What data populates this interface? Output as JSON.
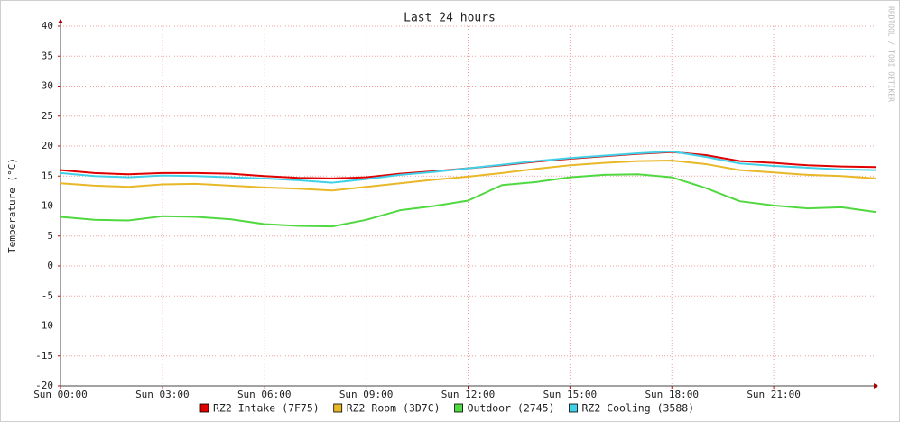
{
  "chart_data": {
    "type": "line",
    "title": "Last 24 hours",
    "y_label": "Temperature (°C)",
    "watermark": "RRDTOOL / TOBI OETIKER",
    "x": [
      0,
      1,
      2,
      3,
      4,
      5,
      6,
      7,
      8,
      9,
      10,
      11,
      12,
      13,
      14,
      15,
      16,
      17,
      18,
      19,
      20,
      21,
      22,
      23,
      24
    ],
    "xlim": [
      0,
      24
    ],
    "xticks": [
      {
        "value": 0,
        "label": "Sun 00:00"
      },
      {
        "value": 3,
        "label": "Sun 03:00"
      },
      {
        "value": 6,
        "label": "Sun 06:00"
      },
      {
        "value": 9,
        "label": "Sun 09:00"
      },
      {
        "value": 12,
        "label": "Sun 12:00"
      },
      {
        "value": 15,
        "label": "Sun 15:00"
      },
      {
        "value": 18,
        "label": "Sun 18:00"
      },
      {
        "value": 21,
        "label": "Sun 21:00"
      }
    ],
    "ylim": [
      -20,
      40
    ],
    "yticks": [
      -20,
      -15,
      -10,
      -5,
      0,
      5,
      10,
      15,
      20,
      25,
      30,
      35,
      40
    ],
    "grid": true,
    "series": [
      {
        "name": "RZ2 Intake (7F75)",
        "color": "#e00000",
        "values": [
          16.0,
          15.5,
          15.3,
          15.5,
          15.5,
          15.4,
          15.0,
          14.7,
          14.6,
          14.8,
          15.4,
          15.8,
          16.3,
          16.8,
          17.4,
          17.9,
          18.3,
          18.7,
          19.0,
          18.5,
          17.5,
          17.2,
          16.8,
          16.6,
          16.5
        ]
      },
      {
        "name": "RZ2 Room (3D7C)",
        "color": "#e8b828",
        "values": [
          13.8,
          13.4,
          13.2,
          13.6,
          13.7,
          13.4,
          13.1,
          12.9,
          12.6,
          13.2,
          13.8,
          14.4,
          14.9,
          15.5,
          16.2,
          16.8,
          17.2,
          17.5,
          17.6,
          17.0,
          16.0,
          15.6,
          15.2,
          15.0,
          14.6
        ]
      },
      {
        "name": "Outdoor (2745)",
        "color": "#50d840",
        "values": [
          8.2,
          7.7,
          7.6,
          8.3,
          8.2,
          7.8,
          7.0,
          6.7,
          6.6,
          7.7,
          9.3,
          10.0,
          10.9,
          13.5,
          14.0,
          14.8,
          15.2,
          15.3,
          14.8,
          13.0,
          10.8,
          10.1,
          9.6,
          9.8,
          9.0
        ]
      },
      {
        "name": "RZ2 Cooling (3588)",
        "color": "#40d0e8",
        "values": [
          15.5,
          15.0,
          14.8,
          15.1,
          15.0,
          14.8,
          14.6,
          14.3,
          13.9,
          14.5,
          15.2,
          15.7,
          16.3,
          16.9,
          17.5,
          18.0,
          18.4,
          18.8,
          19.1,
          18.2,
          17.1,
          16.7,
          16.4,
          16.1,
          16.0
        ]
      }
    ]
  }
}
